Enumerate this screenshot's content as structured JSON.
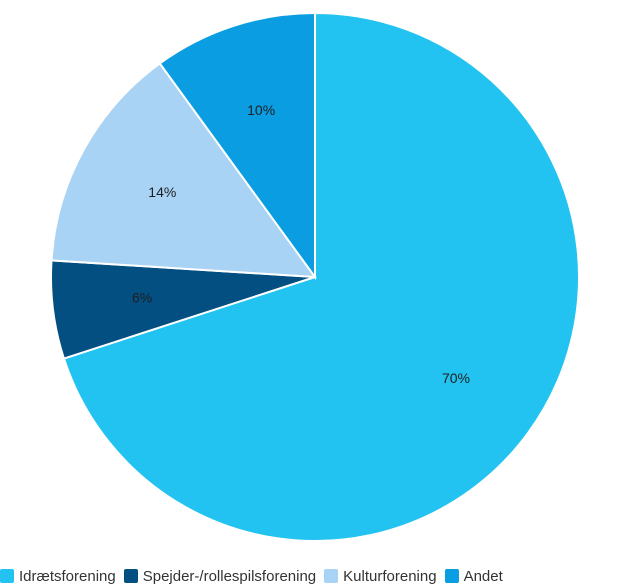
{
  "chart_data": {
    "type": "pie",
    "title": "",
    "legend_position": "bottom",
    "slices": [
      {
        "label": "Idrætsforening",
        "value": 70,
        "data_label": "70%",
        "color": "#22c3f1"
      },
      {
        "label": "Spejder-/rollespilsforening",
        "value": 6,
        "data_label": "6%",
        "color": "#034f82"
      },
      {
        "label": "Kulturforening",
        "value": 14,
        "data_label": "14%",
        "color": "#a9d3f5"
      },
      {
        "label": "Andet",
        "value": 10,
        "data_label": "10%",
        "color": "#0a9de2"
      }
    ]
  }
}
